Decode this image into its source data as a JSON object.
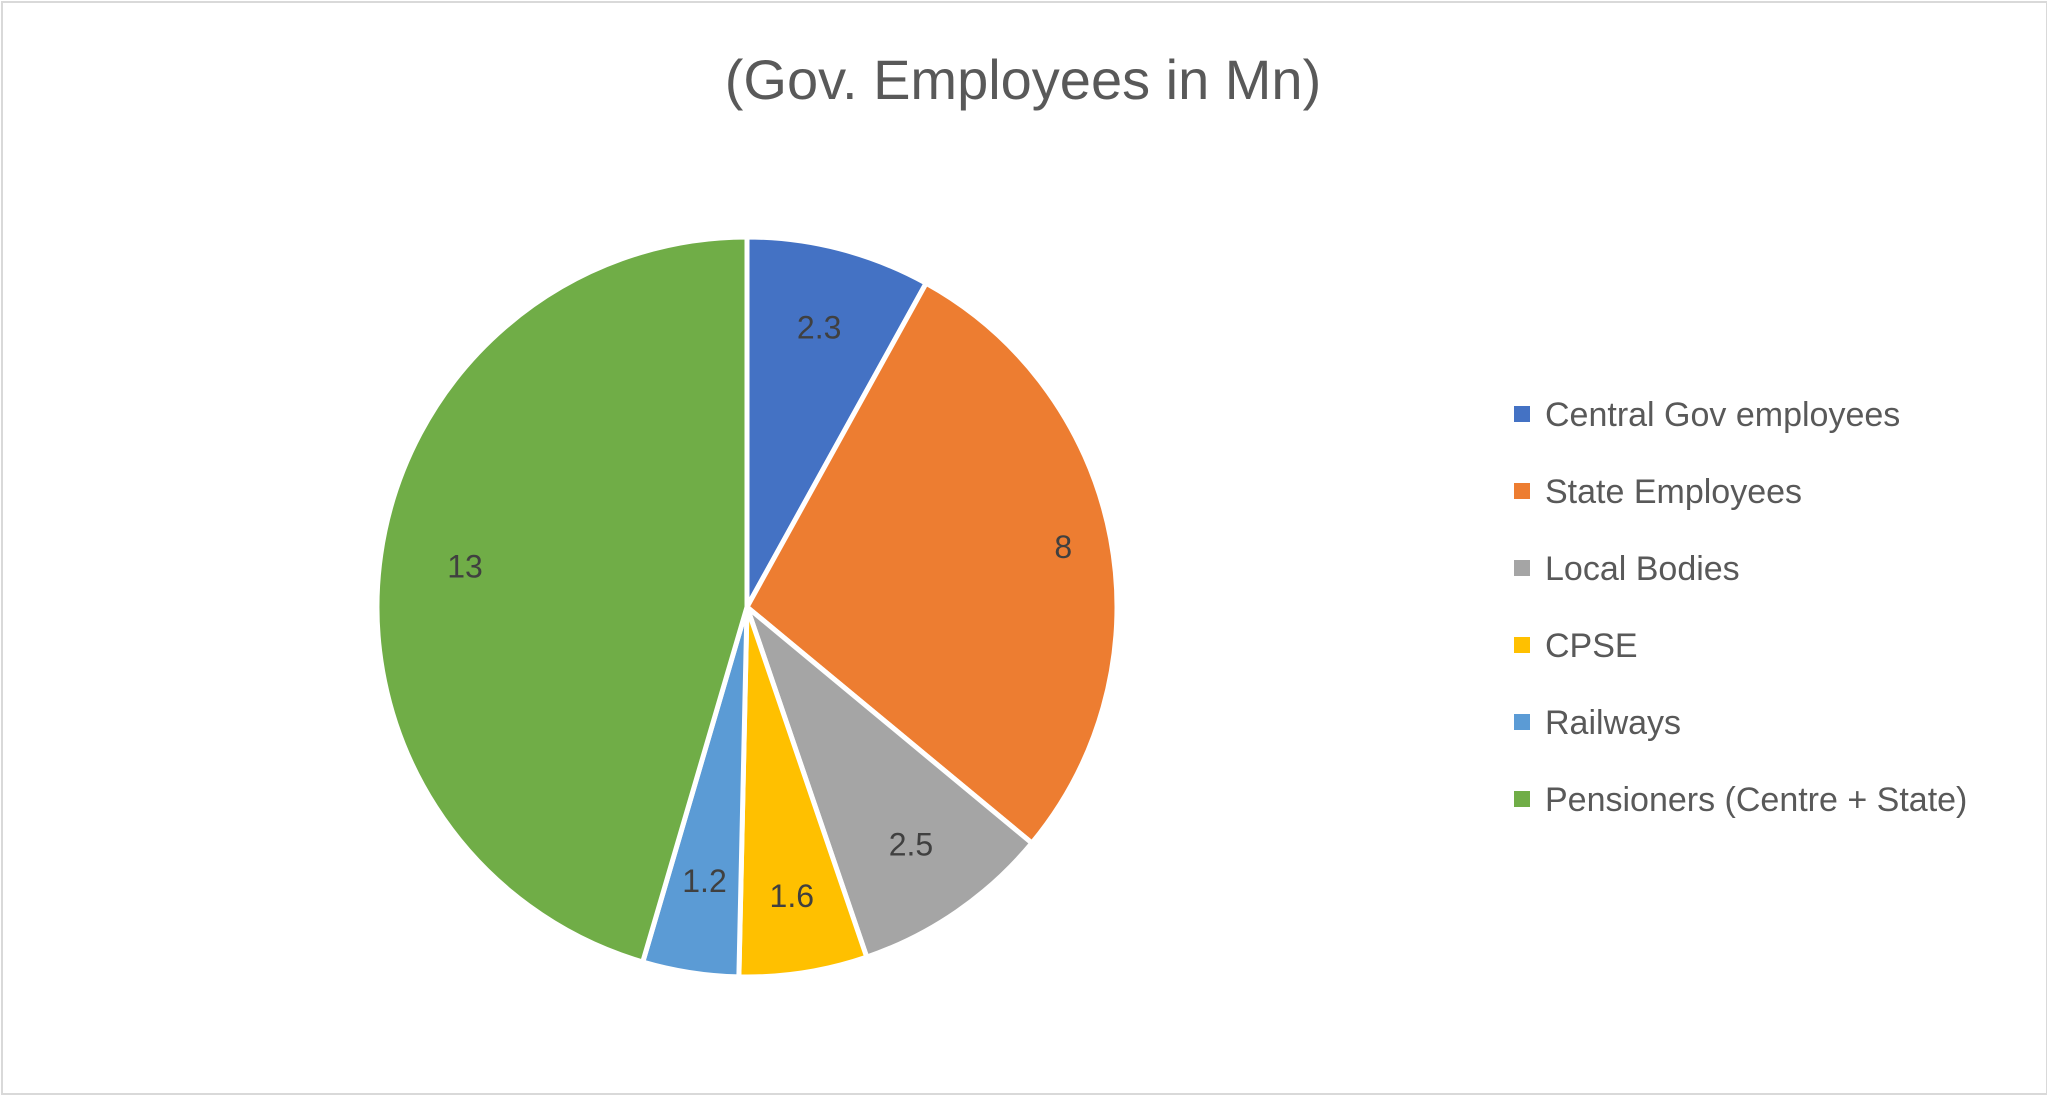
{
  "chart_data": {
    "type": "pie",
    "title": "(Gov. Employees in Mn)",
    "legend_position": "right",
    "categories": [
      "Central Gov  employees",
      "State Employees",
      "Local Bodies",
      "CPSE",
      "Railways",
      "Pensioners (Centre + State)"
    ],
    "values": [
      2.3,
      8,
      2.5,
      1.6,
      1.2,
      13
    ],
    "value_labels": [
      "2.3",
      "8",
      "2.5",
      "1.6",
      "1.2",
      "13"
    ],
    "colors": [
      "#4472C4",
      "#ED7D31",
      "#A5A5A5",
      "#FFC000",
      "#5B9BD5",
      "#70AD47"
    ]
  }
}
